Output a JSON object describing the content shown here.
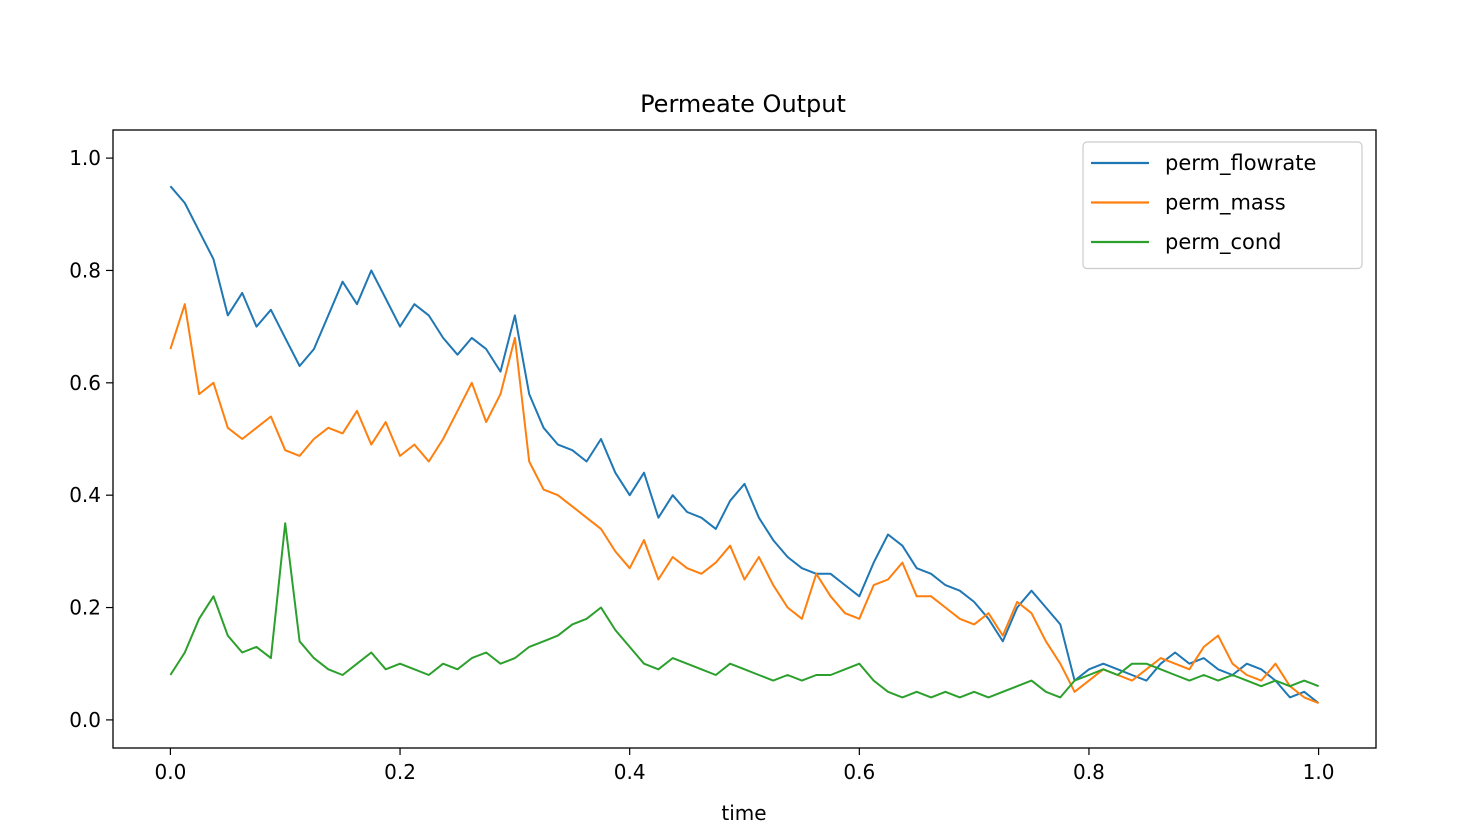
{
  "chart_data": {
    "type": "line",
    "title": "Permeate Output",
    "xlabel": "time",
    "ylabel": "",
    "xlim": [
      -0.05,
      1.05
    ],
    "ylim": [
      -0.05,
      1.05
    ],
    "xticks": [
      "0.0",
      "0.2",
      "0.4",
      "0.6",
      "0.8",
      "1.0"
    ],
    "yticks": [
      "0.0",
      "0.2",
      "0.4",
      "0.6",
      "0.8",
      "1.0"
    ],
    "grid": false,
    "legend_position": "top-right",
    "x": [
      0.0,
      0.0125,
      0.025,
      0.0375,
      0.05,
      0.0625,
      0.075,
      0.0875,
      0.1,
      0.1125,
      0.125,
      0.1375,
      0.15,
      0.1625,
      0.175,
      0.1875,
      0.2,
      0.2125,
      0.225,
      0.2375,
      0.25,
      0.2625,
      0.275,
      0.2875,
      0.3,
      0.3125,
      0.325,
      0.3375,
      0.35,
      0.3625,
      0.375,
      0.3875,
      0.4,
      0.4125,
      0.425,
      0.4375,
      0.45,
      0.4625,
      0.475,
      0.4875,
      0.5,
      0.5125,
      0.525,
      0.5375,
      0.55,
      0.5625,
      0.575,
      0.5875,
      0.6,
      0.6125,
      0.625,
      0.6375,
      0.65,
      0.6625,
      0.675,
      0.6875,
      0.7,
      0.7125,
      0.725,
      0.7375,
      0.75,
      0.7625,
      0.775,
      0.7875,
      0.8,
      0.8125,
      0.825,
      0.8375,
      0.85,
      0.8625,
      0.875,
      0.8875,
      0.9,
      0.9125,
      0.925,
      0.9375,
      0.95,
      0.9625,
      0.975,
      0.9875,
      1.0
    ],
    "series": [
      {
        "name": "perm_flowrate",
        "color": "#1f77b4",
        "values": [
          0.95,
          0.92,
          0.87,
          0.82,
          0.72,
          0.76,
          0.7,
          0.73,
          0.68,
          0.63,
          0.66,
          0.72,
          0.78,
          0.74,
          0.8,
          0.75,
          0.7,
          0.74,
          0.72,
          0.68,
          0.65,
          0.68,
          0.66,
          0.62,
          0.72,
          0.58,
          0.52,
          0.49,
          0.48,
          0.46,
          0.5,
          0.44,
          0.4,
          0.44,
          0.36,
          0.4,
          0.37,
          0.36,
          0.34,
          0.39,
          0.42,
          0.36,
          0.32,
          0.29,
          0.27,
          0.26,
          0.26,
          0.24,
          0.22,
          0.28,
          0.33,
          0.31,
          0.27,
          0.26,
          0.24,
          0.23,
          0.21,
          0.18,
          0.14,
          0.2,
          0.23,
          0.2,
          0.17,
          0.07,
          0.09,
          0.1,
          0.09,
          0.08,
          0.07,
          0.1,
          0.12,
          0.1,
          0.11,
          0.09,
          0.08,
          0.1,
          0.09,
          0.07,
          0.04,
          0.05,
          0.03
        ]
      },
      {
        "name": "perm_mass",
        "color": "#ff7f0e",
        "values": [
          0.66,
          0.74,
          0.58,
          0.6,
          0.52,
          0.5,
          0.52,
          0.54,
          0.48,
          0.47,
          0.5,
          0.52,
          0.51,
          0.55,
          0.49,
          0.53,
          0.47,
          0.49,
          0.46,
          0.5,
          0.55,
          0.6,
          0.53,
          0.58,
          0.68,
          0.46,
          0.41,
          0.4,
          0.38,
          0.36,
          0.34,
          0.3,
          0.27,
          0.32,
          0.25,
          0.29,
          0.27,
          0.26,
          0.28,
          0.31,
          0.25,
          0.29,
          0.24,
          0.2,
          0.18,
          0.26,
          0.22,
          0.19,
          0.18,
          0.24,
          0.25,
          0.28,
          0.22,
          0.22,
          0.2,
          0.18,
          0.17,
          0.19,
          0.15,
          0.21,
          0.19,
          0.14,
          0.1,
          0.05,
          0.07,
          0.09,
          0.08,
          0.07,
          0.09,
          0.11,
          0.1,
          0.09,
          0.13,
          0.15,
          0.1,
          0.08,
          0.07,
          0.1,
          0.06,
          0.04,
          0.03
        ]
      },
      {
        "name": "perm_cond",
        "color": "#2ca02c",
        "values": [
          0.08,
          0.12,
          0.18,
          0.22,
          0.15,
          0.12,
          0.13,
          0.11,
          0.35,
          0.14,
          0.11,
          0.09,
          0.08,
          0.1,
          0.12,
          0.09,
          0.1,
          0.09,
          0.08,
          0.1,
          0.09,
          0.11,
          0.12,
          0.1,
          0.11,
          0.13,
          0.14,
          0.15,
          0.17,
          0.18,
          0.2,
          0.16,
          0.13,
          0.1,
          0.09,
          0.11,
          0.1,
          0.09,
          0.08,
          0.1,
          0.09,
          0.08,
          0.07,
          0.08,
          0.07,
          0.08,
          0.08,
          0.09,
          0.1,
          0.07,
          0.05,
          0.04,
          0.05,
          0.04,
          0.05,
          0.04,
          0.05,
          0.04,
          0.05,
          0.06,
          0.07,
          0.05,
          0.04,
          0.07,
          0.08,
          0.09,
          0.08,
          0.1,
          0.1,
          0.09,
          0.08,
          0.07,
          0.08,
          0.07,
          0.08,
          0.07,
          0.06,
          0.07,
          0.06,
          0.07,
          0.06
        ]
      }
    ]
  }
}
